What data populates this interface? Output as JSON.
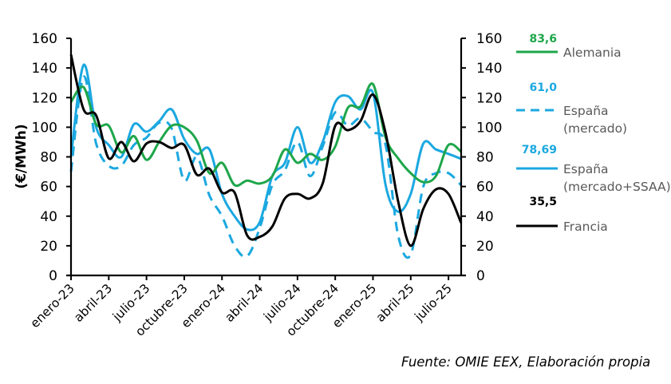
{
  "chart_data": {
    "type": "line",
    "title": "",
    "xlabel": "",
    "ylabel": "(€/MWh)",
    "ylim": [
      0,
      160
    ],
    "y_ticks": [
      "0",
      "20",
      "40",
      "60",
      "80",
      "100",
      "120",
      "140",
      "160"
    ],
    "y_ticks_right": [
      "0",
      "20",
      "40",
      "60",
      "80",
      "100",
      "120",
      "140",
      "160"
    ],
    "x_tick_labels": [
      "enero-23",
      "abril-23",
      "julio-23",
      "octubre-23",
      "enero-24",
      "abril-24",
      "julio-24",
      "octubre-24",
      "enero-25",
      "abril-25",
      "julio-25"
    ],
    "x_tick_step_months": 3,
    "n_months": 32,
    "grid": false,
    "legend_position": "right",
    "series": [
      {
        "name": "Alemania",
        "last_value_label": "83,6",
        "color": "#1ea64a",
        "dash": "solid",
        "values": [
          117,
          127,
          102,
          101,
          83,
          94,
          78,
          90,
          101,
          100,
          91,
          69,
          76,
          61,
          64,
          62,
          67,
          85,
          76,
          82,
          78,
          87,
          113,
          114,
          129,
          93,
          79,
          69,
          63,
          67,
          88,
          83.6
        ]
      },
      {
        "name": "España\n(mercado)",
        "name_lines": [
          "España",
          "(mercado)"
        ],
        "last_value_label": "61,0",
        "color": "#1ba8e0",
        "dash": "dashed",
        "values": [
          70,
          134,
          89,
          74,
          74,
          88,
          93,
          103,
          99,
          64,
          80,
          54,
          40,
          20,
          13,
          32,
          61,
          71,
          90,
          67,
          87,
          110,
          101,
          106,
          97,
          88,
          27,
          14,
          60,
          69,
          69,
          61.0
        ]
      },
      {
        "name": "España\n(mercado+SSAA)",
        "name_lines": [
          "España",
          "(mercado+SSAA)"
        ],
        "last_value_label": "78,69",
        "color": "#1ba8e0",
        "dash": "solid",
        "values": [
          80,
          142,
          100,
          88,
          80,
          102,
          97,
          104,
          112,
          92,
          82,
          85,
          55,
          40,
          31,
          36,
          67,
          76,
          100,
          76,
          90,
          117,
          121,
          112,
          123,
          61,
          43,
          55,
          89,
          85,
          82,
          78.69
        ]
      },
      {
        "name": "Francia",
        "name_lines": [
          "Francia"
        ],
        "last_value_label": "35,5",
        "color": "#000000",
        "dash": "solid",
        "values": [
          149,
          112,
          108,
          79,
          90,
          77,
          89,
          90,
          86,
          88,
          68,
          72,
          56,
          56,
          27,
          26,
          33,
          52,
          55,
          52,
          62,
          101,
          98,
          104,
          122,
          96,
          50,
          20,
          45,
          58,
          55,
          35.5
        ]
      }
    ]
  },
  "source": "Fuente: OMIE EEX, Elaboración propia"
}
